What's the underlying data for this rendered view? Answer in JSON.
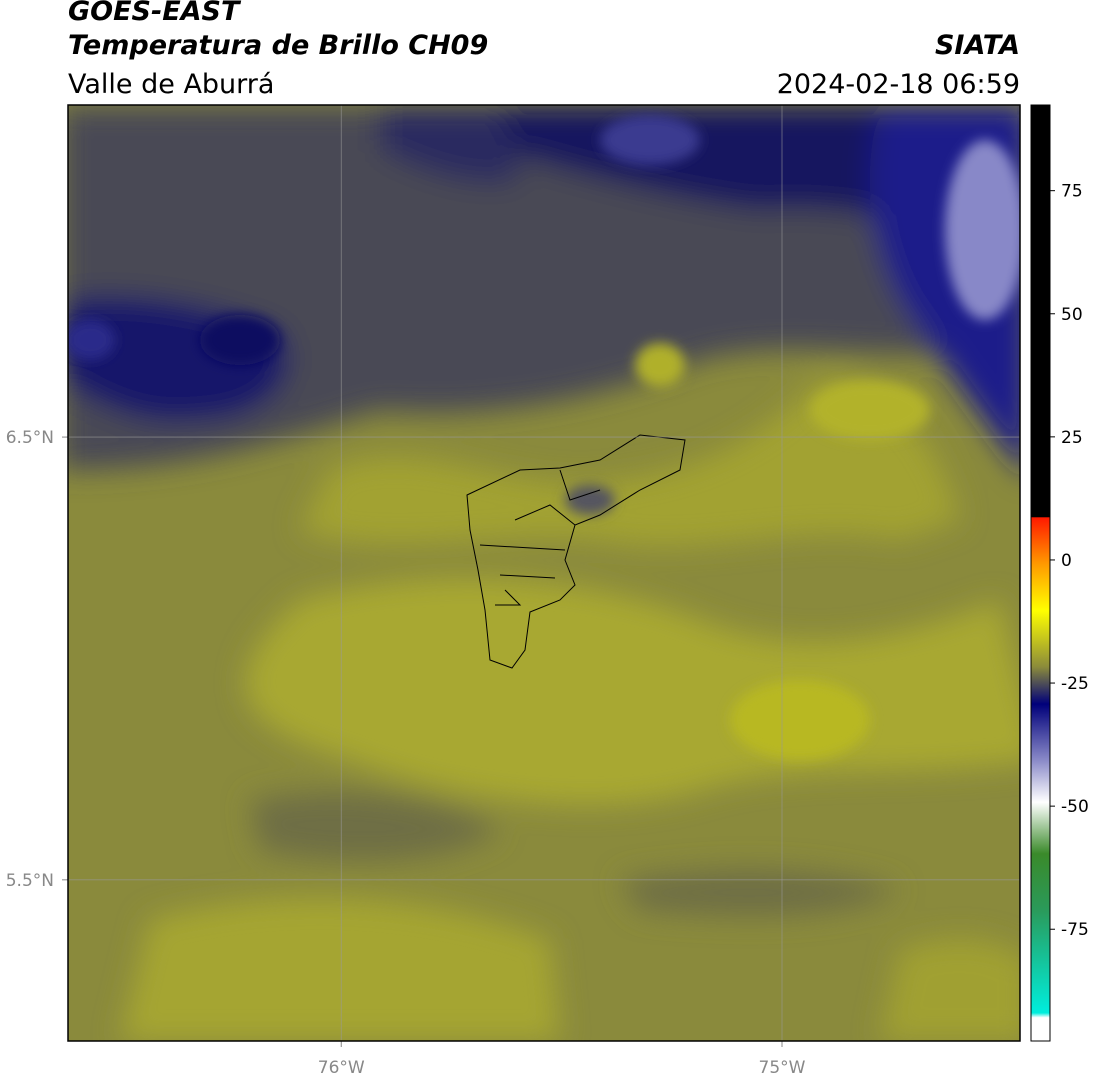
{
  "header": {
    "title": "GOES-EAST",
    "subtitle": "Temperatura de Brillo CH09",
    "region": "Valle de Aburrá",
    "source": "SIATA",
    "timestamp": "2024-02-18 06:59"
  },
  "map": {
    "xlim": [
      -76.62,
      -74.46
    ],
    "ylim": [
      5.136,
      7.25
    ],
    "xticks": [
      {
        "value": -76,
        "label": "76°W"
      },
      {
        "value": -75,
        "label": "75°W"
      }
    ],
    "yticks": [
      {
        "value": 6.5,
        "label": "6.5°N"
      },
      {
        "value": 5.5,
        "label": "5.5°N"
      }
    ]
  },
  "colorbar": {
    "lim": [
      -97.7,
      92.4
    ],
    "ticks": [
      75,
      50,
      25,
      0,
      -25,
      -50,
      -75
    ]
  }
}
